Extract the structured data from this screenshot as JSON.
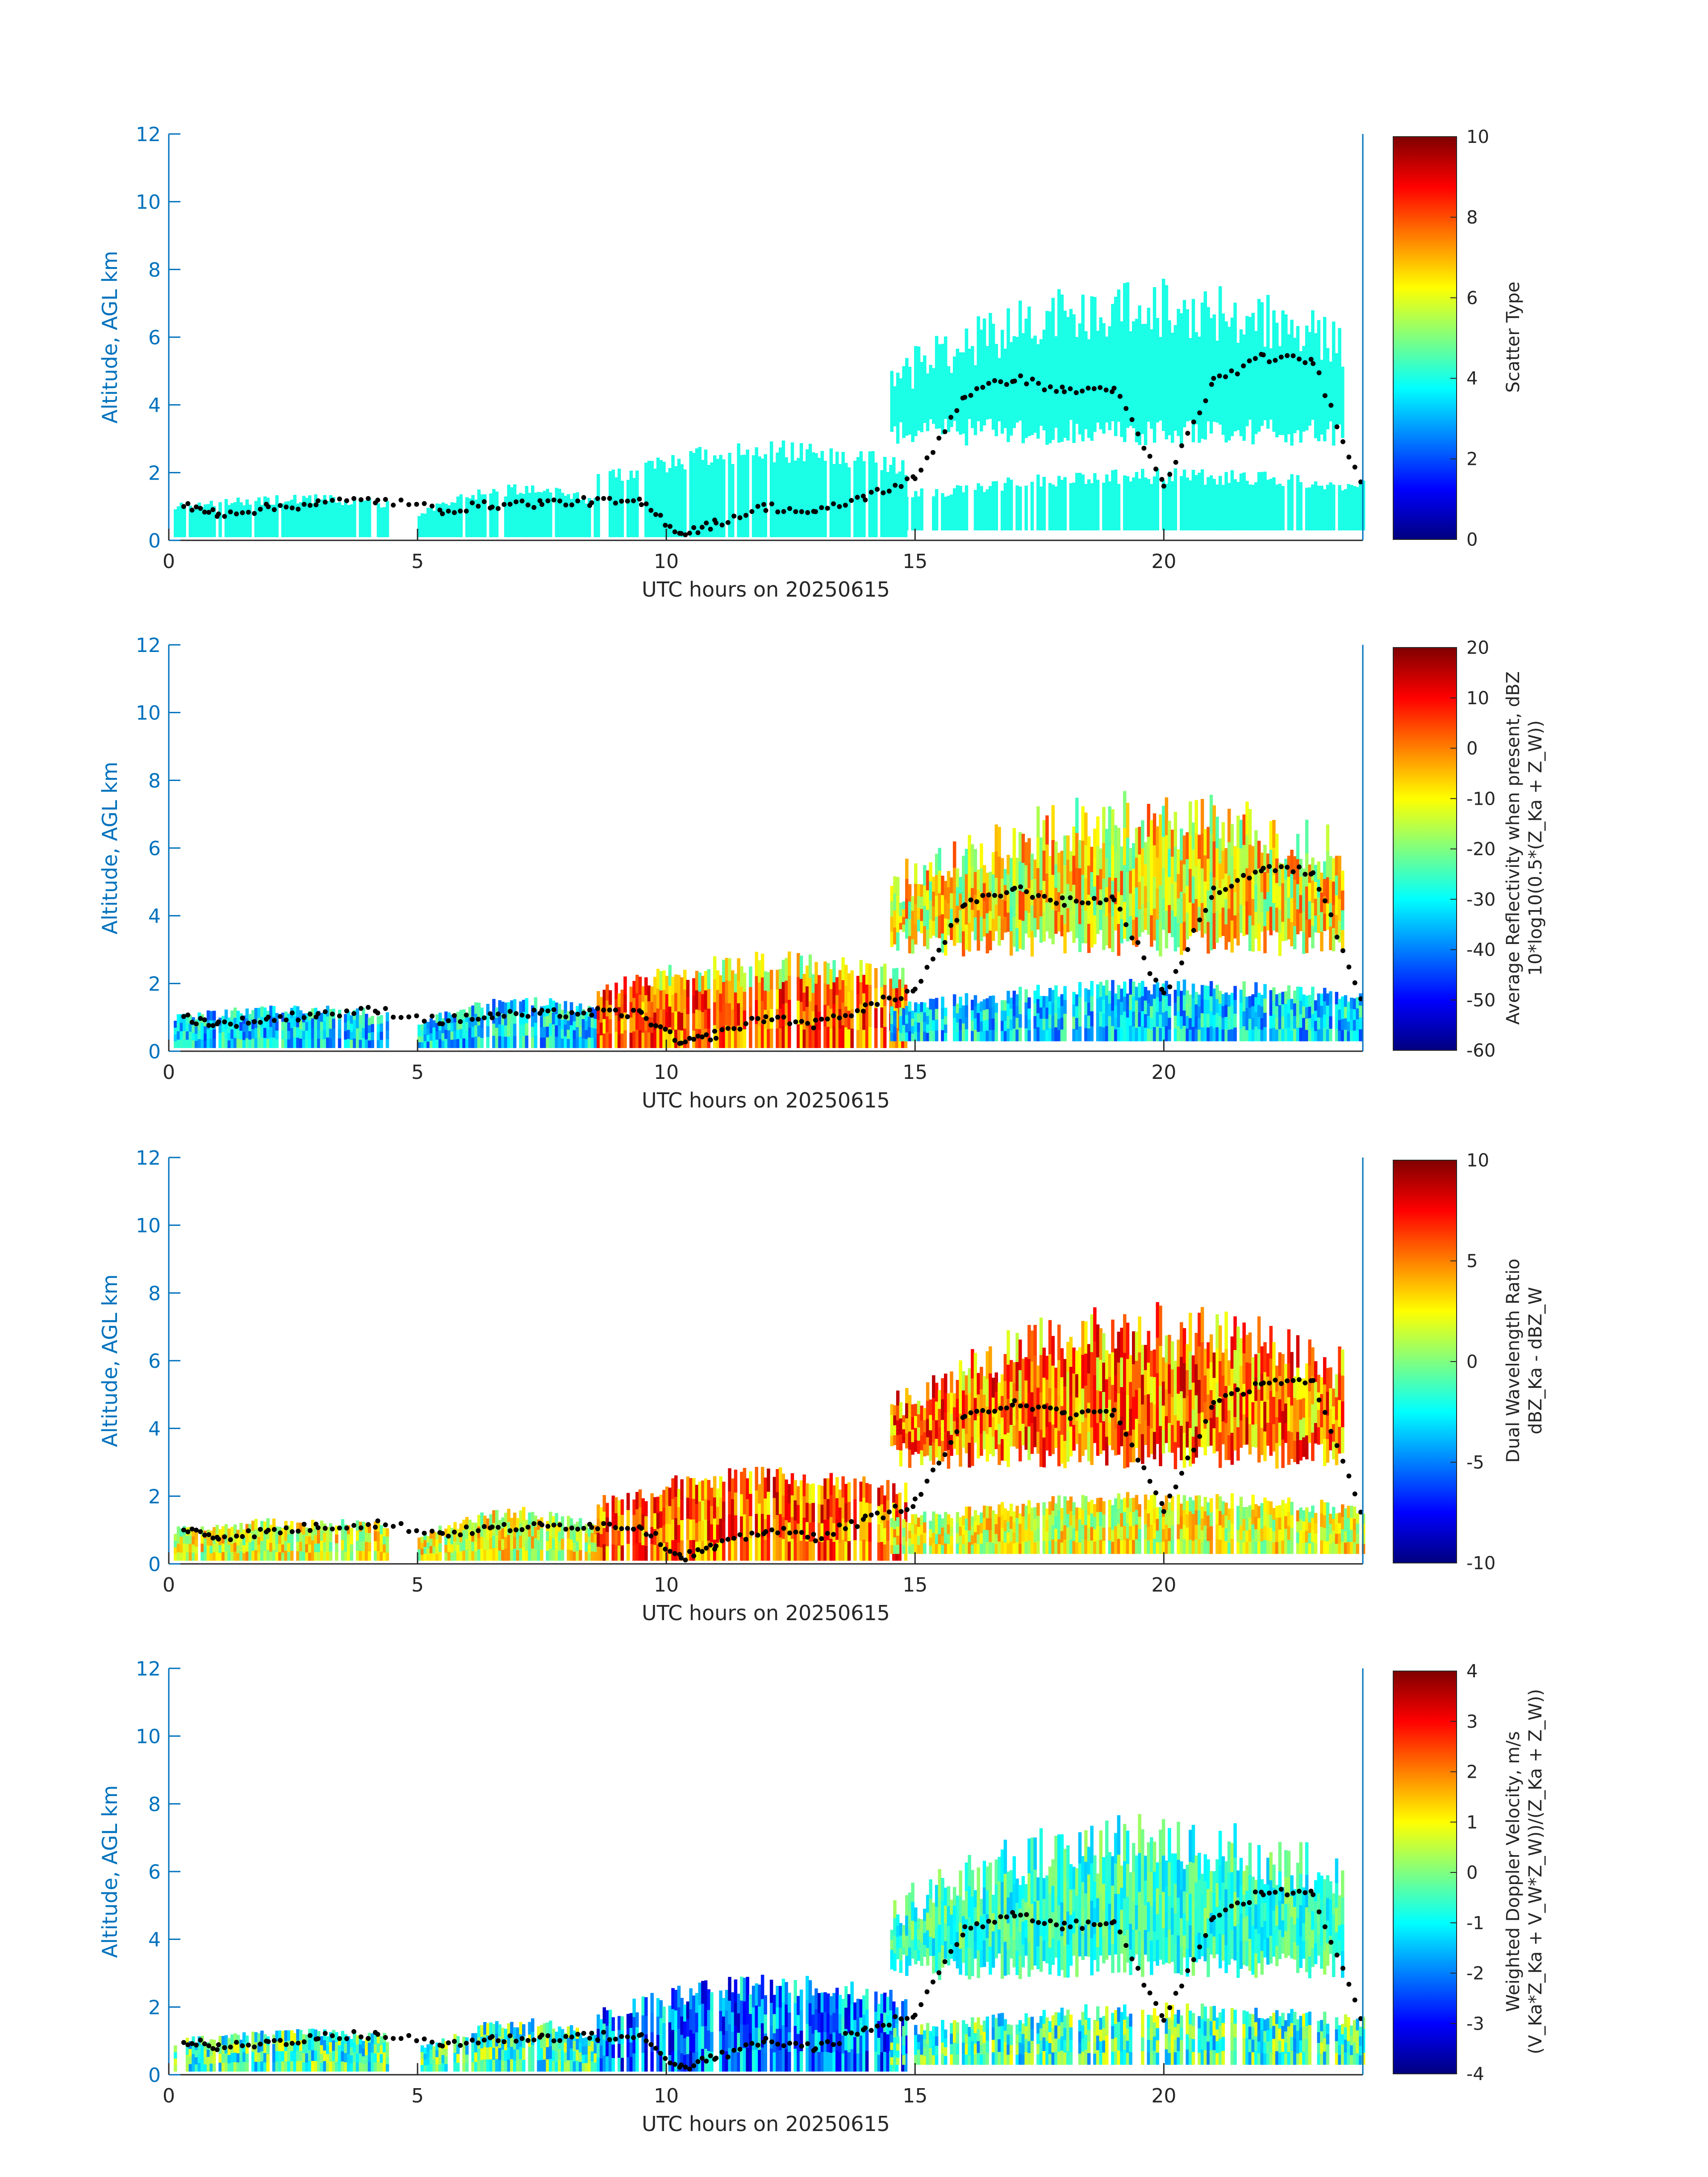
{
  "colors": {
    "axis_blue": "#0072BD",
    "tick_text": "#262626",
    "cloud_dots": "#000000"
  },
  "chart_data": [
    {
      "type": "heatmap",
      "title": "",
      "xlabel": "UTC hours on 20250615",
      "ylabel": "Altitude, AGL km",
      "xlim": [
        0,
        24
      ],
      "ylim": [
        0,
        12
      ],
      "x_ticks": [
        0,
        5,
        10,
        15,
        20
      ],
      "y_ticks": [
        0,
        2,
        4,
        6,
        8,
        10,
        12
      ],
      "colormap": "jet",
      "colorbar": {
        "label": "Scatter Type",
        "label_line2": "",
        "clim": [
          0,
          10
        ],
        "ticks": [
          0,
          2,
          4,
          6,
          8,
          10
        ]
      },
      "field": "scatter_type"
    },
    {
      "type": "heatmap",
      "title": "",
      "xlabel": "UTC hours on 20250615",
      "ylabel": "Altitude, AGL km",
      "xlim": [
        0,
        24
      ],
      "ylim": [
        0,
        12
      ],
      "x_ticks": [
        0,
        5,
        10,
        15,
        20
      ],
      "y_ticks": [
        0,
        2,
        4,
        6,
        8,
        10,
        12
      ],
      "colormap": "jet",
      "colorbar": {
        "label": "Average Reflectivity when present, dBZ",
        "label_line2": "10*log10(0.5*(Z_Ka + Z_W))",
        "clim": [
          -60,
          20
        ],
        "ticks": [
          -60,
          -50,
          -40,
          -30,
          -20,
          -10,
          0,
          10,
          20
        ]
      },
      "field": "reflectivity"
    },
    {
      "type": "heatmap",
      "title": "",
      "xlabel": "UTC hours on 20250615",
      "ylabel": "Altitude, AGL km",
      "xlim": [
        0,
        24
      ],
      "ylim": [
        0,
        12
      ],
      "x_ticks": [
        0,
        5,
        10,
        15,
        20
      ],
      "y_ticks": [
        0,
        2,
        4,
        6,
        8,
        10,
        12
      ],
      "colormap": "jet",
      "colorbar": {
        "label": "Dual Wavelength Ratio",
        "label_line2": "dBZ_Ka - dBZ_W",
        "clim": [
          -10,
          10
        ],
        "ticks": [
          -10,
          -5,
          0,
          5,
          10
        ]
      },
      "field": "dwr"
    },
    {
      "type": "heatmap",
      "title": "",
      "xlabel": "UTC hours on 20250615",
      "ylabel": "Altitude, AGL km",
      "xlim": [
        0,
        24
      ],
      "ylim": [
        0,
        12
      ],
      "x_ticks": [
        0,
        5,
        10,
        15,
        20
      ],
      "y_ticks": [
        0,
        2,
        4,
        6,
        8,
        10,
        12
      ],
      "colormap": "jet",
      "colorbar": {
        "label": "Weighted Doppler Velocity, m/s",
        "label_line2": "(V_Ka*Z_Ka + V_W*Z_W))/(Z_Ka + Z_W))",
        "clim": [
          -4,
          4
        ],
        "ticks": [
          -4,
          -3,
          -2,
          -1,
          0,
          1,
          2,
          3,
          4
        ]
      },
      "field": "velocity"
    }
  ],
  "cloud_regions": [
    {
      "name": "low-layer-early",
      "x": [
        0.1,
        4.4
      ],
      "base_km": 0.1,
      "top_km": [
        1.0,
        1.3
      ]
    },
    {
      "name": "low-layer-mid",
      "x": [
        5.0,
        8.6
      ],
      "base_km": 0.1,
      "top_km": [
        0.8,
        1.7
      ]
    },
    {
      "name": "deep-morning",
      "x": [
        8.6,
        14.8
      ],
      "base_km": 0.1,
      "top_km": [
        1.8,
        2.9
      ]
    },
    {
      "name": "low-layer-late",
      "x": [
        14.5,
        24.0
      ],
      "base_km": 0.3,
      "top_km": [
        1.3,
        2.1
      ]
    },
    {
      "name": "mid-level-deck",
      "x": [
        14.5,
        23.6
      ],
      "base_km": 2.8,
      "top_km": [
        5.0,
        7.5
      ]
    }
  ],
  "cloud_base_km": [
    [
      0.3,
      1.0
    ],
    [
      1.0,
      0.8
    ],
    [
      2.0,
      0.95
    ],
    [
      3.0,
      1.1
    ],
    [
      4.2,
      1.2
    ],
    [
      5.5,
      0.9
    ],
    [
      6.5,
      1.05
    ],
    [
      7.5,
      1.1
    ],
    [
      8.5,
      1.15
    ],
    [
      9.5,
      1.1
    ],
    [
      10.3,
      0.2
    ],
    [
      11.0,
      0.5
    ],
    [
      12.0,
      1.0
    ],
    [
      13.0,
      0.8
    ],
    [
      14.0,
      1.3
    ],
    [
      15.0,
      1.8
    ],
    [
      16.0,
      4.3
    ],
    [
      17.0,
      4.8
    ],
    [
      18.0,
      4.4
    ],
    [
      19.0,
      4.5
    ],
    [
      20.0,
      1.6
    ],
    [
      21.0,
      4.7
    ],
    [
      22.0,
      5.4
    ],
    [
      23.0,
      5.3
    ],
    [
      24.0,
      1.5
    ]
  ]
}
